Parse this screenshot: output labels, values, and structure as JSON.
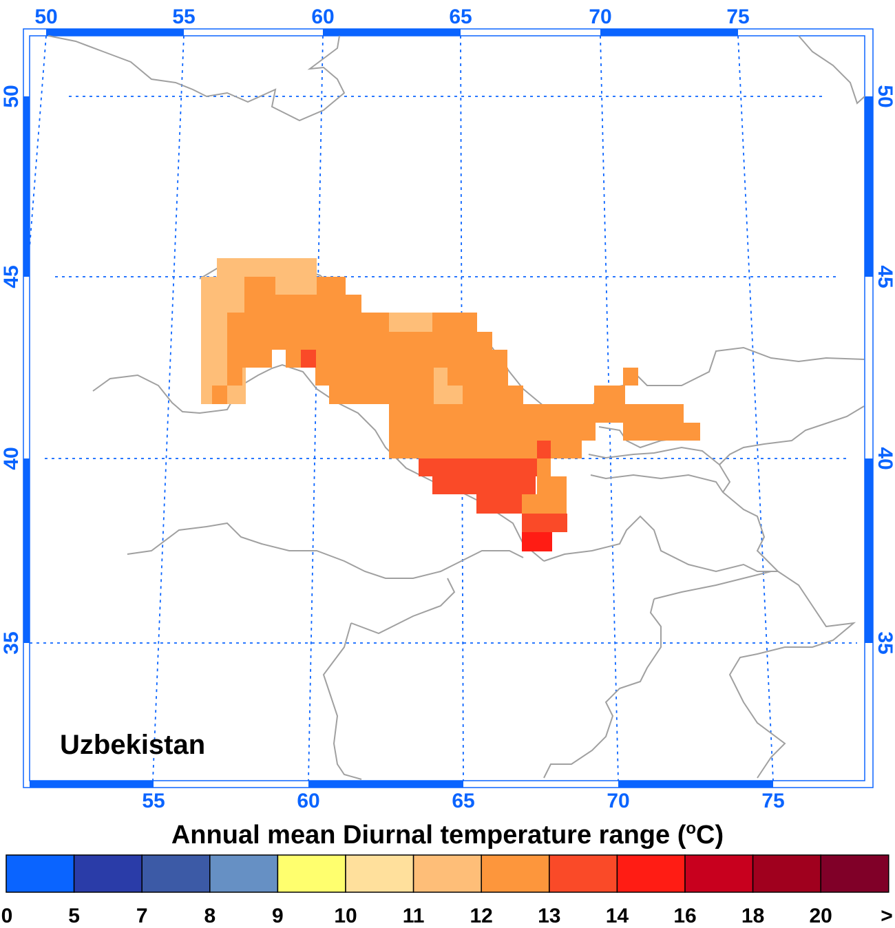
{
  "map": {
    "country": "Uzbekistan",
    "title_main": "Annual mean Diurnal temperature range (",
    "title_sup": "o",
    "title_unit": "C)",
    "colors": {
      "axis": "#0a64ff",
      "grid": "#0a64ff",
      "borders": "#a0a0a0"
    },
    "top_lon_labels": [
      "50",
      "55",
      "60",
      "65",
      "70",
      "75"
    ],
    "bottom_lon_labels": [
      "55",
      "60",
      "65",
      "70",
      "75"
    ],
    "left_lat_labels": [
      "50",
      "45",
      "40",
      "35"
    ],
    "right_lat_labels": [
      "50",
      "45",
      "40",
      "35"
    ]
  },
  "legend": {
    "bins": [
      {
        "color": "#0a64ff"
      },
      {
        "color": "#2a3ca8"
      },
      {
        "color": "#3c5aa6"
      },
      {
        "color": "#6690c4"
      },
      {
        "color": "#ffff6e"
      },
      {
        "color": "#ffe09c"
      },
      {
        "color": "#febe78"
      },
      {
        "color": "#fd963c"
      },
      {
        "color": "#fa4a28"
      },
      {
        "color": "#ff1c14"
      },
      {
        "color": "#c8001e"
      },
      {
        "color": "#a0001e"
      },
      {
        "color": "#800028"
      }
    ],
    "labels": [
      "0",
      "5",
      "7",
      "8",
      "9",
      "10",
      "11",
      "12",
      "13",
      "14",
      "16",
      "18",
      "20",
      ">"
    ]
  },
  "chart_data": {
    "type": "heatmap",
    "title": "Annual mean Diurnal temperature range (oC)",
    "region": "Uzbekistan",
    "bin_edges": [
      0,
      5,
      7,
      8,
      9,
      10,
      11,
      12,
      13,
      14,
      16,
      18,
      20
    ],
    "values": [
      {
        "lon_range": [
          56.0,
          59.5
        ],
        "lat_range": [
          44.0,
          45.5
        ],
        "value": "11-12"
      },
      {
        "lon_range": [
          57.5,
          61.0
        ],
        "lat_range": [
          42.5,
          45.0
        ],
        "value": "12-13"
      },
      {
        "lon_range": [
          61.0,
          64.5
        ],
        "lat_range": [
          41.5,
          44.0
        ],
        "value": "12-13"
      },
      {
        "lon_range": [
          64.5,
          72.5
        ],
        "lat_range": [
          40.0,
          42.0
        ],
        "value": "12-13"
      },
      {
        "lon_range": [
          63.5,
          67.5
        ],
        "lat_range": [
          38.5,
          40.0
        ],
        "value": "13-14"
      },
      {
        "lon_range": [
          67.0,
          68.0
        ],
        "lat_range": [
          37.5,
          38.0
        ],
        "value": "14-16"
      }
    ]
  }
}
